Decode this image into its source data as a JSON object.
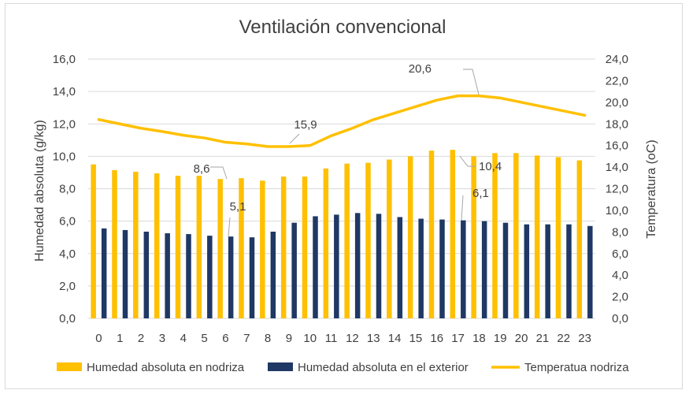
{
  "chart_data": {
    "type": "bar",
    "title": "Ventilación convencional",
    "categories": [
      "0",
      "1",
      "2",
      "3",
      "4",
      "5",
      "6",
      "7",
      "8",
      "9",
      "10",
      "11",
      "12",
      "13",
      "14",
      "15",
      "16",
      "17",
      "18",
      "19",
      "20",
      "21",
      "22",
      "23"
    ],
    "series": [
      {
        "name": "Humedad absoluta en nodriza",
        "type": "bar",
        "axis": "left",
        "color": "#FFC000",
        "values": [
          9.5,
          9.15,
          9.05,
          8.95,
          8.8,
          8.8,
          8.6,
          8.65,
          8.5,
          8.75,
          8.75,
          9.25,
          9.55,
          9.6,
          9.8,
          10.0,
          10.35,
          10.4,
          10.0,
          10.2,
          10.2,
          10.05,
          9.95,
          9.75
        ]
      },
      {
        "name": "Humedad absoluta en el exterior",
        "type": "bar",
        "axis": "left",
        "color": "#1F3864",
        "values": [
          5.55,
          5.45,
          5.35,
          5.25,
          5.2,
          5.1,
          5.05,
          5.0,
          5.35,
          5.9,
          6.3,
          6.4,
          6.5,
          6.45,
          6.25,
          6.15,
          6.1,
          6.05,
          6.0,
          5.9,
          5.8,
          5.8,
          5.8,
          5.7
        ]
      },
      {
        "name": "Temperatua nodriza",
        "type": "line",
        "axis": "right",
        "color": "#FFC000",
        "values": [
          18.4,
          18.0,
          17.6,
          17.3,
          16.95,
          16.7,
          16.3,
          16.15,
          15.9,
          15.9,
          16.0,
          16.9,
          17.6,
          18.4,
          19.0,
          19.6,
          20.2,
          20.6,
          20.6,
          20.4,
          20.0,
          19.6,
          19.2,
          18.8
        ]
      }
    ],
    "ylabel": "Humedad absoluta (g/kg)",
    "ylabel_right": "Temperatura (oC)",
    "ylim": [
      0,
      16
    ],
    "ylim_right": [
      0,
      24
    ],
    "yticks": [
      "0,0",
      "2,0",
      "4,0",
      "6,0",
      "8,0",
      "10,0",
      "12,0",
      "14,0",
      "16,0"
    ],
    "yticks_right": [
      "0,0",
      "2,0",
      "4,0",
      "6,0",
      "8,0",
      "10,0",
      "12,0",
      "14,0",
      "16,0",
      "18,0",
      "20,0",
      "22,0",
      "24,0"
    ],
    "grid": true,
    "legend_position": "bottom",
    "data_labels": [
      {
        "series": 0,
        "index": 6,
        "text": "8,6"
      },
      {
        "series": 1,
        "index": 6,
        "text": "5,1"
      },
      {
        "series": 2,
        "index": 9,
        "text": "15,9"
      },
      {
        "series": 2,
        "index": 17,
        "text": "20,6"
      },
      {
        "series": 0,
        "index": 17,
        "text": "10,4"
      },
      {
        "series": 1,
        "index": 17,
        "text": "6,1"
      }
    ]
  }
}
